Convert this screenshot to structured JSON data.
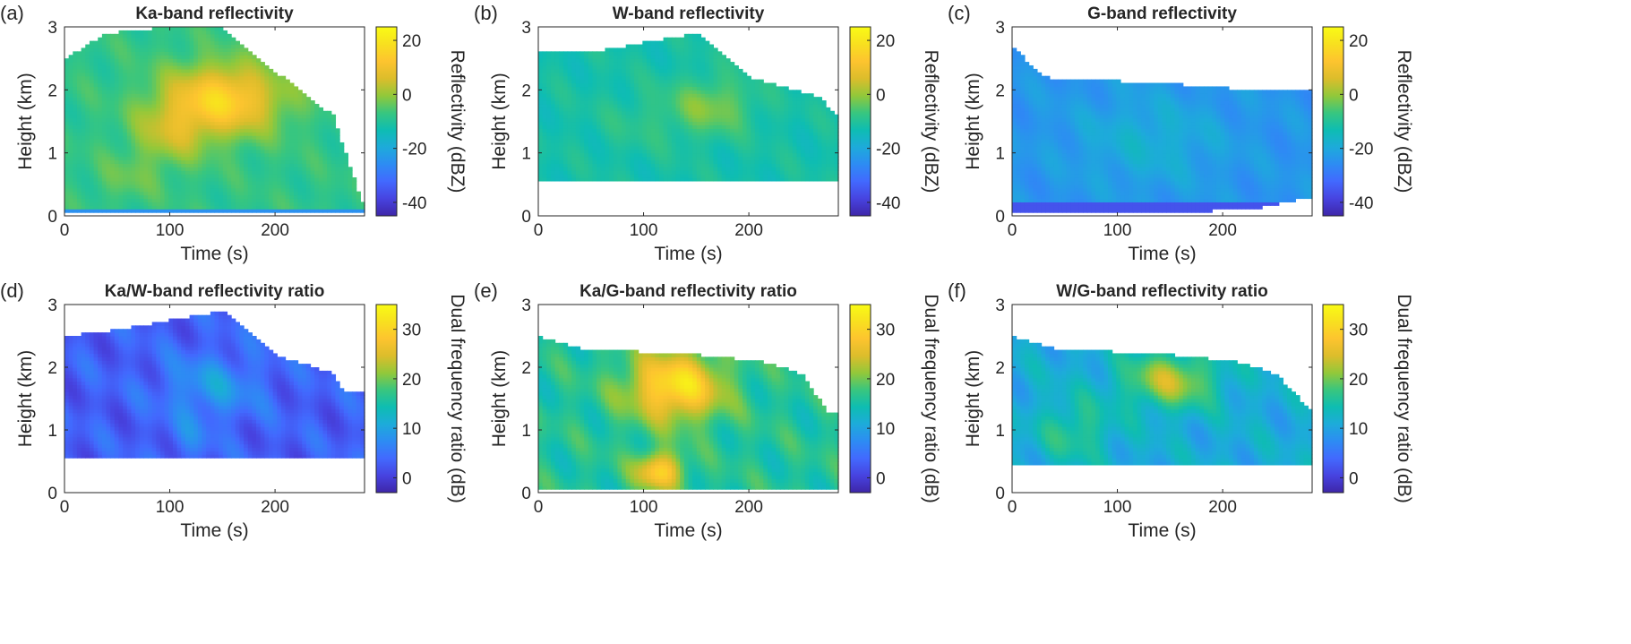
{
  "colormap": [
    "#3e26a8",
    "#4743e0",
    "#4269fe",
    "#2d8cf3",
    "#1dabda",
    "#0ebdb2",
    "#38c67f",
    "#92c83a",
    "#dcbd2b",
    "#fdc42f",
    "#f8e01f",
    "#f9fb15"
  ],
  "chart_data": [
    {
      "type": "heatmap",
      "panel_label": "(a)",
      "title": "Ka-band reflectivity",
      "xlabel": "Time (s)",
      "ylabel": "Height (km)",
      "xlim": [
        0,
        285
      ],
      "ylim": [
        0,
        3
      ],
      "xticks": [
        "0",
        "100",
        "200"
      ],
      "yticks": [
        "0",
        "1",
        "2",
        "3"
      ],
      "colorbar": {
        "label": "Reflectivity (dBZ)",
        "range": [
          -45,
          25
        ],
        "ticks": [
          "20",
          "0",
          "-20",
          "-40"
        ]
      },
      "field": {
        "baseline": -8,
        "cores": [
          {
            "t": 150,
            "h": 1.85,
            "st": 55,
            "sh": 0.55,
            "v": 24
          },
          {
            "t": 100,
            "h": 1.3,
            "st": 35,
            "sh": 0.5,
            "v": 10
          },
          {
            "t": 60,
            "h": 0.6,
            "st": 30,
            "sh": 0.35,
            "v": 4
          }
        ],
        "envelope": [
          {
            "t": 0,
            "bottom": 0.05,
            "top": 2.5
          },
          {
            "t": 40,
            "bottom": 0.05,
            "top": 2.9
          },
          {
            "t": 100,
            "bottom": 0.05,
            "top": 3.0
          },
          {
            "t": 150,
            "bottom": 0.05,
            "top": 3.0
          },
          {
            "t": 200,
            "bottom": 0.05,
            "top": 2.3
          },
          {
            "t": 230,
            "bottom": 0.05,
            "top": 1.9
          },
          {
            "t": 255,
            "bottom": 0.05,
            "top": 1.6
          },
          {
            "t": 285,
            "bottom": 0.05,
            "top": 0.12
          }
        ],
        "surface_layer": {
          "top": 0.1,
          "value": -25
        }
      }
    },
    {
      "type": "heatmap",
      "panel_label": "(b)",
      "title": "W-band reflectivity",
      "xlabel": "Time (s)",
      "ylabel": "Height (km)",
      "xlim": [
        0,
        285
      ],
      "ylim": [
        0,
        3
      ],
      "xticks": [
        "0",
        "100",
        "200"
      ],
      "yticks": [
        "0",
        "1",
        "2",
        "3"
      ],
      "colorbar": {
        "label": "Reflectivity (dBZ)",
        "range": [
          -45,
          25
        ],
        "ticks": [
          "20",
          "0",
          "-20",
          "-40"
        ]
      },
      "field": {
        "baseline": -12,
        "cores": [
          {
            "t": 165,
            "h": 1.75,
            "st": 40,
            "sh": 0.45,
            "v": 10
          },
          {
            "t": 100,
            "h": 1.5,
            "st": 45,
            "sh": 0.5,
            "v": 3
          }
        ],
        "envelope": [
          {
            "t": 0,
            "bottom": 0.58,
            "top": 2.6
          },
          {
            "t": 50,
            "bottom": 0.58,
            "top": 2.6
          },
          {
            "t": 150,
            "bottom": 0.58,
            "top": 2.9
          },
          {
            "t": 200,
            "bottom": 0.58,
            "top": 2.2
          },
          {
            "t": 265,
            "bottom": 0.58,
            "top": 1.9
          },
          {
            "t": 285,
            "bottom": 0.58,
            "top": 1.6
          }
        ]
      }
    },
    {
      "type": "heatmap",
      "panel_label": "(c)",
      "title": "G-band reflectivity",
      "xlabel": "Time (s)",
      "ylabel": "Height (km)",
      "xlim": [
        0,
        285
      ],
      "ylim": [
        0,
        3
      ],
      "xticks": [
        "0",
        "100",
        "200"
      ],
      "yticks": [
        "0",
        "1",
        "2",
        "3"
      ],
      "colorbar": {
        "label": "Reflectivity (dBZ)",
        "range": [
          -45,
          25
        ],
        "ticks": [
          "20",
          "0",
          "-20",
          "-40"
        ]
      },
      "field": {
        "baseline": -24,
        "cores": [
          {
            "t": 130,
            "h": 1.2,
            "st": 70,
            "sh": 0.7,
            "v": 6
          }
        ],
        "envelope": [
          {
            "t": 0,
            "bottom": 0.05,
            "top": 2.7
          },
          {
            "t": 30,
            "bottom": 0.05,
            "top": 2.2
          },
          {
            "t": 150,
            "bottom": 0.05,
            "top": 2.1
          },
          {
            "t": 230,
            "bottom": 0.12,
            "top": 2.0
          },
          {
            "t": 285,
            "bottom": 0.3,
            "top": 2.0
          }
        ],
        "surface_layer": {
          "top": 0.2,
          "value": -36
        }
      }
    },
    {
      "type": "heatmap",
      "panel_label": "(d)",
      "title": "Ka/W-band reflectivity ratio",
      "xlabel": "Time (s)",
      "ylabel": "Height (km)",
      "xlim": [
        0,
        285
      ],
      "ylim": [
        0,
        3
      ],
      "xticks": [
        "0",
        "100",
        "200"
      ],
      "yticks": [
        "0",
        "1",
        "2",
        "3"
      ],
      "colorbar": {
        "label": "Dual frequency ratio (dB)",
        "range": [
          -3,
          35
        ],
        "ticks": [
          "30",
          "20",
          "10",
          "0"
        ]
      },
      "field": {
        "baseline": 3,
        "cores": [
          {
            "t": 140,
            "h": 1.7,
            "st": 45,
            "sh": 0.5,
            "v": 6
          },
          {
            "t": 120,
            "h": 0.9,
            "st": 20,
            "sh": 0.4,
            "v": 3
          }
        ],
        "envelope": [
          {
            "t": 0,
            "bottom": 0.58,
            "top": 2.5
          },
          {
            "t": 50,
            "bottom": 0.58,
            "top": 2.6
          },
          {
            "t": 150,
            "bottom": 0.58,
            "top": 2.9
          },
          {
            "t": 200,
            "bottom": 0.58,
            "top": 2.2
          },
          {
            "t": 255,
            "bottom": 0.58,
            "top": 1.9
          },
          {
            "t": 265,
            "bottom": 0.58,
            "top": 1.6
          }
        ]
      }
    },
    {
      "type": "heatmap",
      "panel_label": "(e)",
      "title": "Ka/G-band reflectivity ratio",
      "xlabel": "Time (s)",
      "ylabel": "Height (km)",
      "xlim": [
        0,
        285
      ],
      "ylim": [
        0,
        3
      ],
      "xticks": [
        "0",
        "100",
        "200"
      ],
      "yticks": [
        "0",
        "1",
        "2",
        "3"
      ],
      "colorbar": {
        "label": "Dual frequency ratio (dB)",
        "range": [
          -3,
          35
        ],
        "ticks": [
          "30",
          "20",
          "10",
          "0"
        ]
      },
      "field": {
        "baseline": 16,
        "cores": [
          {
            "t": 130,
            "h": 1.7,
            "st": 45,
            "sh": 0.55,
            "v": 16
          },
          {
            "t": 115,
            "h": 0.35,
            "st": 22,
            "sh": 0.3,
            "v": 14
          }
        ],
        "envelope": [
          {
            "t": 0,
            "bottom": 0.05,
            "top": 2.5
          },
          {
            "t": 40,
            "bottom": 0.05,
            "top": 2.3
          },
          {
            "t": 150,
            "bottom": 0.05,
            "top": 2.2
          },
          {
            "t": 210,
            "bottom": 0.05,
            "top": 2.1
          },
          {
            "t": 250,
            "bottom": 0.05,
            "top": 1.9
          },
          {
            "t": 275,
            "bottom": 0.05,
            "top": 1.3
          }
        ]
      }
    },
    {
      "type": "heatmap",
      "panel_label": "(f)",
      "title": "W/G-band reflectivity ratio",
      "xlabel": "Time (s)",
      "ylabel": "Height (km)",
      "xlim": [
        0,
        285
      ],
      "ylim": [
        0,
        3
      ],
      "xticks": [
        "0",
        "100",
        "200"
      ],
      "yticks": [
        "0",
        "1",
        "2",
        "3"
      ],
      "colorbar": {
        "label": "Dual frequency ratio (dB)",
        "range": [
          -3,
          35
        ],
        "ticks": [
          "30",
          "20",
          "10",
          "0"
        ]
      },
      "field": {
        "baseline": 11,
        "cores": [
          {
            "t": 150,
            "h": 1.8,
            "st": 45,
            "sh": 0.45,
            "v": 12
          },
          {
            "t": 60,
            "h": 1.0,
            "st": 35,
            "sh": 0.5,
            "v": 6
          }
        ],
        "envelope": [
          {
            "t": 0,
            "bottom": 0.45,
            "top": 2.5
          },
          {
            "t": 40,
            "bottom": 0.45,
            "top": 2.3
          },
          {
            "t": 150,
            "bottom": 0.45,
            "top": 2.2
          },
          {
            "t": 210,
            "bottom": 0.45,
            "top": 2.1
          },
          {
            "t": 250,
            "bottom": 0.45,
            "top": 1.9
          },
          {
            "t": 285,
            "bottom": 0.45,
            "top": 1.3
          }
        ]
      }
    }
  ]
}
